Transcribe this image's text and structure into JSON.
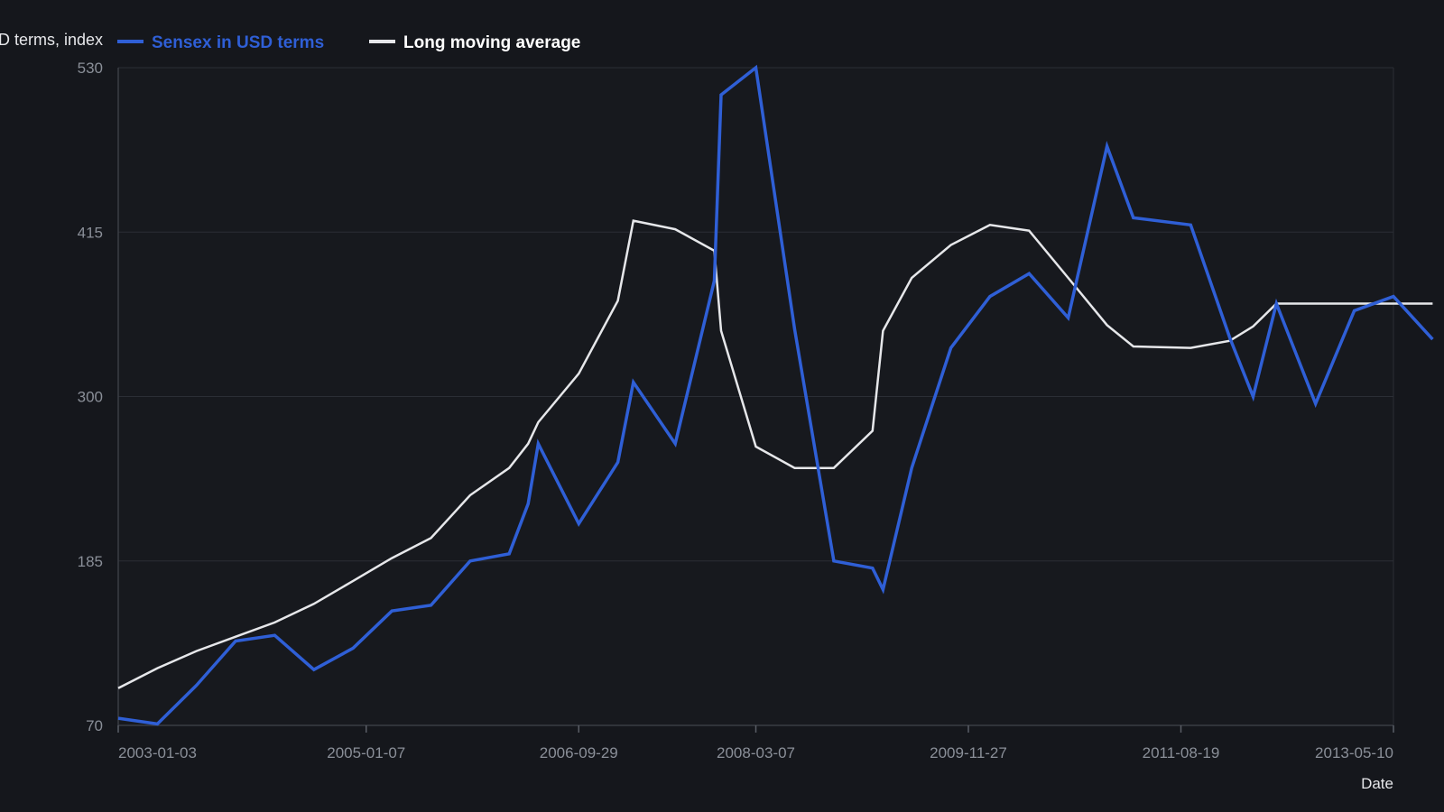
{
  "chart_data": {
    "type": "line",
    "ylabel_fragment": "D terms, index",
    "xlabel": "Date",
    "ylim": [
      70,
      530
    ],
    "y_ticks": [
      "530",
      "415",
      "300",
      "185",
      "70"
    ],
    "x_ticks": [
      "2003-01-03",
      "2005-01-07",
      "2006-09-29",
      "2008-03-07",
      "2009-11-27",
      "2011-08-19",
      "2013-05-10"
    ],
    "grid": true,
    "legend_position": "top-left",
    "x": [
      "2003-01-03",
      "2003-04-29",
      "2003-08-23",
      "2003-12-17",
      "2004-04-11",
      "2004-08-05",
      "2004-11-29",
      "2005-03-24",
      "2005-07-18",
      "2005-11-11",
      "2006-03-07",
      "2006-05-02",
      "2006-06-01",
      "2006-09-29",
      "2007-01-23",
      "2007-03-10",
      "2007-07-12",
      "2007-11-05",
      "2007-11-25",
      "2008-03-07",
      "2008-06-30",
      "2008-10-24",
      "2009-02-16",
      "2009-03-19",
      "2009-06-12",
      "2009-10-06",
      "2010-01-30",
      "2010-05-26",
      "2010-09-19",
      "2011-01-12",
      "2011-03-31",
      "2011-09-17",
      "2012-01-11",
      "2012-03-20",
      "2012-05-28",
      "2012-09-21",
      "2013-01-14",
      "2013-05-10",
      "2013-09-03"
    ],
    "series": [
      {
        "name": "Sensex in USD terms",
        "color": "#2f5fd6",
        "values": [
          75,
          71,
          98,
          129,
          133,
          109,
          124,
          150,
          154,
          185,
          190,
          225,
          267,
          211,
          254,
          310,
          267,
          381,
          511,
          530,
          347,
          185,
          180,
          165,
          250,
          334,
          370,
          386,
          355,
          475,
          425,
          420,
          341,
          300,
          365,
          295,
          360,
          370,
          340
        ]
      },
      {
        "name": "Long moving average",
        "color": "#e6e7ea",
        "values": [
          96,
          110,
          122,
          132,
          142,
          155,
          171,
          187,
          201,
          231,
          250,
          267,
          282,
          316,
          367,
          423,
          417,
          402,
          346,
          265,
          250,
          250,
          276,
          346,
          383,
          406,
          420,
          416,
          383,
          350,
          335,
          334,
          339,
          349,
          365,
          365,
          365,
          365,
          365
        ]
      }
    ]
  }
}
